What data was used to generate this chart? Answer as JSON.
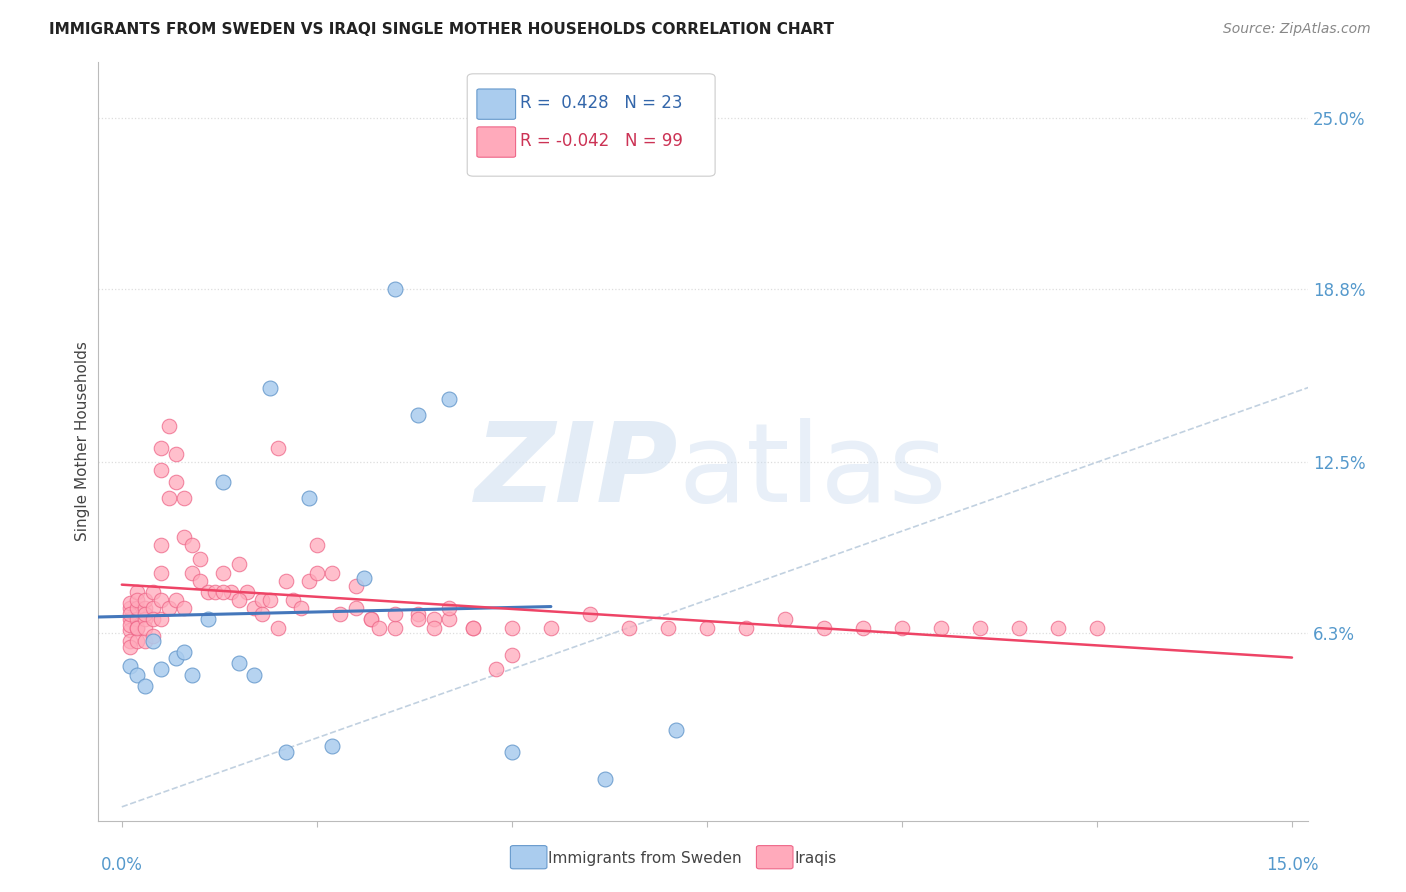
{
  "title": "IMMIGRANTS FROM SWEDEN VS IRAQI SINGLE MOTHER HOUSEHOLDS CORRELATION CHART",
  "source": "Source: ZipAtlas.com",
  "ylabel": "Single Mother Households",
  "y_ticks": [
    0.063,
    0.125,
    0.188,
    0.25
  ],
  "y_tick_labels": [
    "6.3%",
    "12.5%",
    "18.8%",
    "25.0%"
  ],
  "x_lim": [
    0.0,
    0.15
  ],
  "y_lim": [
    0.0,
    0.27
  ],
  "legend_sweden_r": "0.428",
  "legend_sweden_n": "23",
  "legend_iraq_r": "-0.042",
  "legend_iraq_n": "99",
  "blue_fill": "#AACCEE",
  "blue_edge": "#6699CC",
  "pink_fill": "#FFAABB",
  "pink_edge": "#EE6688",
  "blue_line": "#4477BB",
  "pink_line": "#EE4466",
  "diag_color": "#BBCCDD",
  "grid_color": "#DDDDDD",
  "sweden_x": [
    0.001,
    0.002,
    0.003,
    0.004,
    0.005,
    0.007,
    0.008,
    0.009,
    0.011,
    0.013,
    0.015,
    0.017,
    0.019,
    0.021,
    0.024,
    0.027,
    0.031,
    0.035,
    0.038,
    0.042,
    0.05,
    0.062,
    0.071
  ],
  "sweden_y": [
    0.051,
    0.048,
    0.044,
    0.06,
    0.05,
    0.054,
    0.056,
    0.048,
    0.068,
    0.118,
    0.052,
    0.048,
    0.152,
    0.02,
    0.112,
    0.022,
    0.083,
    0.188,
    0.142,
    0.148,
    0.02,
    0.01,
    0.028
  ],
  "iraq_x": [
    0.001,
    0.001,
    0.001,
    0.001,
    0.001,
    0.001,
    0.001,
    0.001,
    0.002,
    0.002,
    0.002,
    0.002,
    0.002,
    0.002,
    0.002,
    0.003,
    0.003,
    0.003,
    0.003,
    0.003,
    0.003,
    0.004,
    0.004,
    0.004,
    0.004,
    0.005,
    0.005,
    0.005,
    0.005,
    0.005,
    0.005,
    0.006,
    0.006,
    0.006,
    0.007,
    0.007,
    0.007,
    0.008,
    0.008,
    0.008,
    0.009,
    0.009,
    0.01,
    0.01,
    0.011,
    0.012,
    0.013,
    0.014,
    0.015,
    0.016,
    0.017,
    0.018,
    0.019,
    0.02,
    0.021,
    0.022,
    0.024,
    0.025,
    0.027,
    0.03,
    0.032,
    0.035,
    0.038,
    0.04,
    0.042,
    0.045,
    0.05,
    0.055,
    0.06,
    0.065,
    0.07,
    0.075,
    0.08,
    0.085,
    0.09,
    0.095,
    0.1,
    0.105,
    0.11,
    0.115,
    0.12,
    0.125,
    0.013,
    0.015,
    0.018,
    0.02,
    0.023,
    0.025,
    0.028,
    0.03,
    0.032,
    0.033,
    0.035,
    0.038,
    0.04,
    0.042,
    0.045,
    0.048,
    0.05
  ],
  "iraq_y": [
    0.068,
    0.064,
    0.06,
    0.072,
    0.066,
    0.058,
    0.074,
    0.07,
    0.068,
    0.065,
    0.072,
    0.06,
    0.078,
    0.075,
    0.065,
    0.072,
    0.068,
    0.06,
    0.075,
    0.065,
    0.07,
    0.072,
    0.078,
    0.068,
    0.062,
    0.13,
    0.122,
    0.068,
    0.075,
    0.085,
    0.095,
    0.138,
    0.112,
    0.072,
    0.128,
    0.118,
    0.075,
    0.112,
    0.098,
    0.072,
    0.095,
    0.085,
    0.09,
    0.082,
    0.078,
    0.078,
    0.085,
    0.078,
    0.088,
    0.078,
    0.072,
    0.075,
    0.075,
    0.065,
    0.082,
    0.075,
    0.082,
    0.095,
    0.085,
    0.08,
    0.068,
    0.065,
    0.07,
    0.068,
    0.068,
    0.065,
    0.065,
    0.065,
    0.07,
    0.065,
    0.065,
    0.065,
    0.065,
    0.068,
    0.065,
    0.065,
    0.065,
    0.065,
    0.065,
    0.065,
    0.065,
    0.065,
    0.078,
    0.075,
    0.07,
    0.13,
    0.072,
    0.085,
    0.07,
    0.072,
    0.068,
    0.065,
    0.07,
    0.068,
    0.065,
    0.072,
    0.065,
    0.05,
    0.055
  ]
}
